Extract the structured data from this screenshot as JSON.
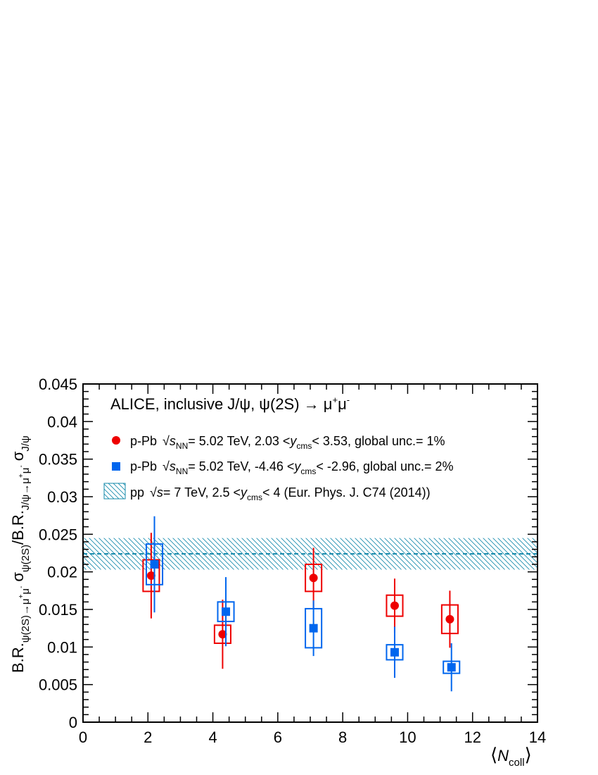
{
  "chart_data": {
    "type": "scatter",
    "title": "ALICE, inclusive J/ψ, ψ(2S) → μ⁺μ⁻",
    "xlabel": "⟨N_coll⟩",
    "ylabel": "B.R.ψ(2S)→μ⁺μ⁻ σψ(2S)/B.R.J/ψ→μ⁺μ⁻ σJ/ψ",
    "xlim": [
      0,
      14
    ],
    "ylim": [
      0,
      0.045
    ],
    "x_ticks": [
      "0",
      "2",
      "4",
      "6",
      "8",
      "10",
      "12",
      "14"
    ],
    "y_ticks": [
      "0",
      "0.005",
      "0.01",
      "0.015",
      "0.02",
      "0.025",
      "0.03",
      "0.035",
      "0.04",
      "0.045"
    ],
    "series": [
      {
        "name": "p-Pb √sNN= 5.02 TeV, 2.03 <ycms< 3.53, global unc.= 1%",
        "marker": "circle",
        "color": "#ee0000",
        "x": [
          2.1,
          4.3,
          7.1,
          9.6,
          11.3
        ],
        "y": [
          0.0195,
          0.0117,
          0.0192,
          0.0155,
          0.0137
        ],
        "stat_err": [
          0.0057,
          0.0046,
          0.004,
          0.0036,
          0.0038
        ],
        "syst_err": [
          0.0021,
          0.0012,
          0.0018,
          0.0014,
          0.0019
        ],
        "syst_halfwidth_x": [
          0.25,
          0.25,
          0.25,
          0.25,
          0.25
        ]
      },
      {
        "name": "p-Pb √sNN= 5.02 TeV, -4.46 <ycms< -2.96, global unc.= 2%",
        "marker": "square",
        "color": "#0066ee",
        "x": [
          2.2,
          4.4,
          7.1,
          9.6,
          11.35
        ],
        "y": [
          0.021,
          0.0147,
          0.0125,
          0.0093,
          0.0073
        ],
        "stat_err": [
          0.0064,
          0.0046,
          0.0037,
          0.0034,
          0.0032
        ],
        "syst_err": [
          0.0027,
          0.0013,
          0.0026,
          0.001,
          0.0008
        ],
        "syst_halfwidth_x": [
          0.25,
          0.25,
          0.25,
          0.25,
          0.25
        ]
      }
    ],
    "reference_band": {
      "name": "pp √s= 7 TeV, 2.5 <ycms< 4 (Eur. Phys. J. C74 (2014))",
      "center": 0.0224,
      "low": 0.0203,
      "high": 0.0245,
      "color": "#1188aa"
    },
    "legend_placement": "top-left",
    "grid": false
  },
  "text": {
    "title": "ALICE, inclusive J/ψ, ψ(2S) → μ",
    "title_sup1": "+",
    "title_mu2": "μ",
    "title_sup2": "-",
    "legend_red_prefix": "p-Pb",
    "legend_red_body": "= 5.02 TeV, 2.03 <",
    "legend_red_y": "y",
    "legend_red_sub": "cms",
    "legend_red_tail": "< 3.53, global unc.= 1%",
    "legend_blue_prefix": "p-Pb",
    "legend_blue_body": "= 5.02 TeV, -4.46 <",
    "legend_blue_y": "y",
    "legend_blue_sub": "cms",
    "legend_blue_tail": "< -2.96, global unc.= 2%",
    "sqrt_s": "s",
    "sqrt_nn": "NN",
    "legend_pp_prefix": "pp",
    "legend_pp_s": "s",
    "legend_pp_body": "= 7 TeV, 2.5 <",
    "legend_pp_y": "y",
    "legend_pp_sub": "cms",
    "legend_pp_tail": "< 4 (Eur. Phys. J. C74 (2014))",
    "xlabel_N": "N",
    "xlabel_sub": "coll",
    "ylabel_br1": "B.R.",
    "ylabel_sub1": "ψ(2S)→μ",
    "ylabel_sup1a": "+",
    "ylabel_sub1b": "μ",
    "ylabel_sup1b": "-",
    "ylabel_sigma1": "σ",
    "ylabel_sigsub1": "ψ(2S)",
    "ylabel_slash": "/B.R.",
    "ylabel_sub2": "J/ψ→μ",
    "ylabel_sup2a": "+",
    "ylabel_sub2b": "μ",
    "ylabel_sup2b": "-",
    "ylabel_sigma2": "σ",
    "ylabel_sigsub2": "J/ψ"
  }
}
